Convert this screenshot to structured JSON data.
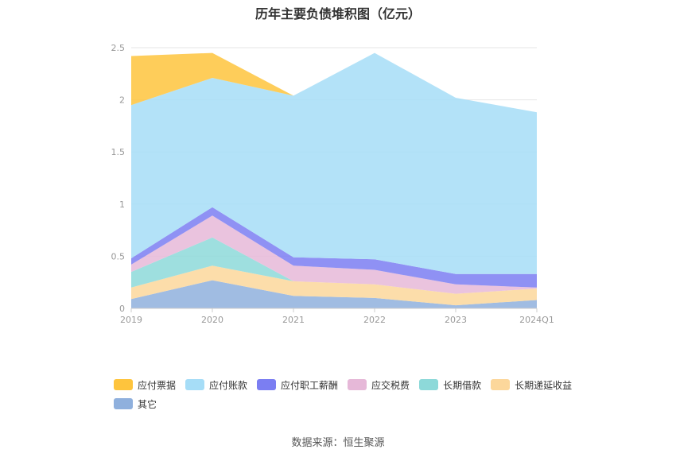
{
  "chart_data": {
    "type": "area",
    "stacked": true,
    "title": "历年主要负债堆积图（亿元）",
    "categories": [
      "2019",
      "2020",
      "2021",
      "2022",
      "2023",
      "2024Q1"
    ],
    "ylim": [
      0,
      2.5
    ],
    "yticks": [
      "0",
      "0.5",
      "1",
      "1.5",
      "2",
      "2.5"
    ],
    "grid": true,
    "legend_position": "bottom",
    "series": [
      {
        "name": "其它",
        "color": "#8fb0dd",
        "values": [
          0.09,
          0.27,
          0.12,
          0.1,
          0.03,
          0.08
        ]
      },
      {
        "name": "长期递延收益",
        "color": "#fcd79b",
        "values": [
          0.11,
          0.14,
          0.14,
          0.13,
          0.11,
          0.11
        ]
      },
      {
        "name": "长期借款",
        "color": "#8dd9d9",
        "values": [
          0.15,
          0.27,
          0.0,
          0.0,
          0.0,
          0.0
        ]
      },
      {
        "name": "应交税费",
        "color": "#e6b8d8",
        "values": [
          0.07,
          0.21,
          0.15,
          0.14,
          0.09,
          0.01
        ]
      },
      {
        "name": "应付职工薪酬",
        "color": "#7b7ef2",
        "values": [
          0.06,
          0.08,
          0.08,
          0.1,
          0.1,
          0.13
        ]
      },
      {
        "name": "应付账款",
        "color": "#a6ddf7",
        "values": [
          1.47,
          1.24,
          1.55,
          1.98,
          1.69,
          1.55
        ]
      },
      {
        "name": "应付票据",
        "color": "#fec43d",
        "values": [
          0.47,
          0.24,
          0.0,
          0.0,
          0.0,
          0.0
        ]
      }
    ],
    "legend_order": [
      "应付票据",
      "应付账款",
      "应付职工薪酬",
      "应交税费",
      "长期借款",
      "长期递延收益",
      "其它"
    ]
  },
  "source": "数据来源：恒生聚源"
}
